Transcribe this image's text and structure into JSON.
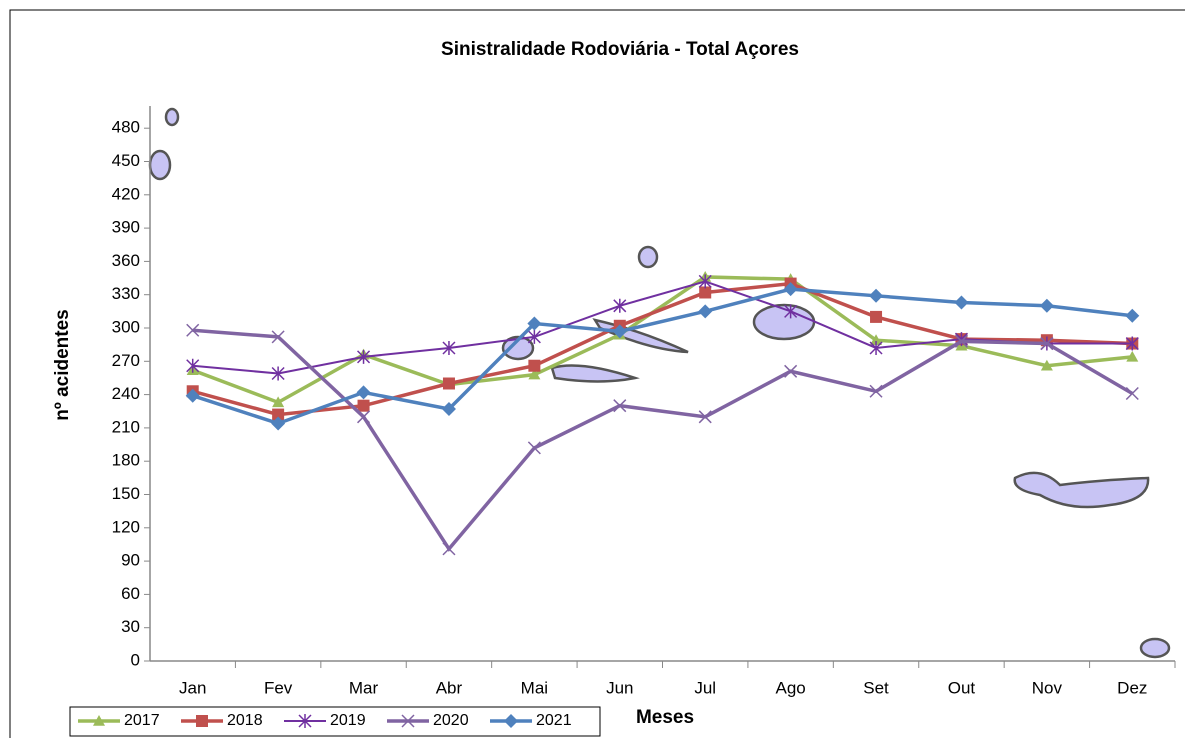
{
  "chart_data": {
    "type": "line",
    "title": "Sinistralidade  Rodoviária  - Total Açores",
    "x_label": "Meses",
    "y_label": "nº acidentes",
    "categories": [
      "Jan",
      "Fev",
      "Mar",
      "Abr",
      "Mai",
      "Jun",
      "Jul",
      "Ago",
      "Set",
      "Out",
      "Nov",
      "Dez"
    ],
    "ylim": [
      0,
      500
    ],
    "yticks": [
      0,
      30,
      60,
      90,
      120,
      150,
      180,
      210,
      240,
      270,
      300,
      330,
      360,
      390,
      420,
      450,
      480
    ],
    "grid": false,
    "legend": "bottom-left",
    "series": [
      {
        "name": "2017",
        "color": "#9bbb59",
        "marker": "triangle",
        "values": [
          262,
          233,
          276,
          249,
          258,
          294,
          346,
          344,
          289,
          284,
          266,
          274
        ]
      },
      {
        "name": "2018",
        "color": "#c0504d",
        "marker": "square",
        "values": [
          243,
          222,
          230,
          250,
          266,
          302,
          332,
          340,
          310,
          290,
          289,
          286
        ]
      },
      {
        "name": "2019",
        "color": "#7030a0",
        "marker": "star",
        "values": [
          266,
          259,
          274,
          282,
          292,
          320,
          342,
          315,
          282,
          290,
          286,
          286
        ]
      },
      {
        "name": "2020",
        "color": "#8064a2",
        "marker": "x",
        "values": [
          298,
          292,
          220,
          101,
          192,
          230,
          220,
          261,
          243,
          288,
          286,
          241
        ]
      },
      {
        "name": "2021",
        "color": "#4f81bd",
        "marker": "diamond",
        "values": [
          239,
          214,
          242,
          227,
          304,
          297,
          315,
          335,
          329,
          323,
          320,
          311
        ]
      }
    ]
  }
}
